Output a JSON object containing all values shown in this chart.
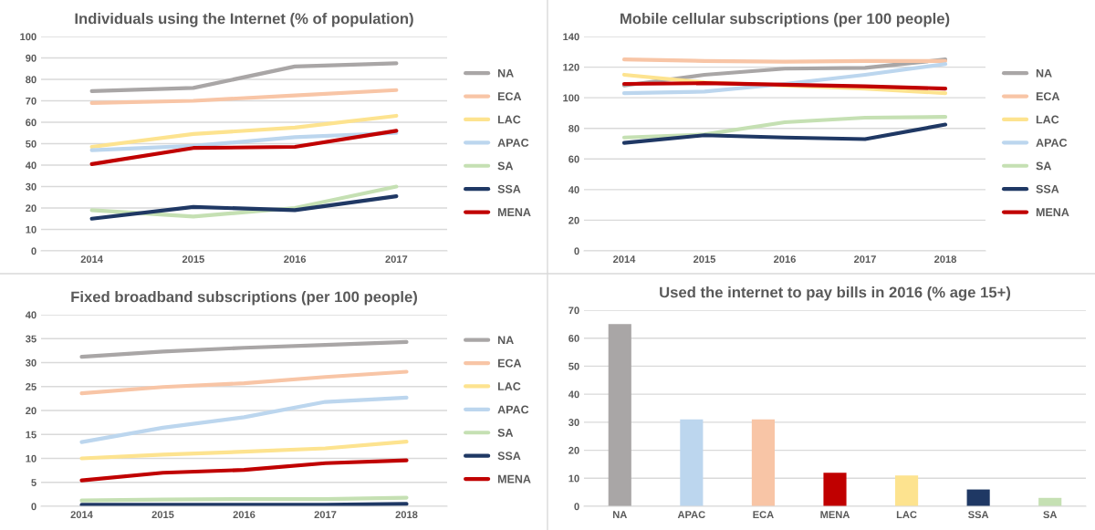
{
  "chart_data": [
    {
      "type": "line",
      "title": "Individuals using the Internet (% of population)",
      "categories": [
        "2014",
        "2015",
        "2016",
        "2017"
      ],
      "ylim": [
        0,
        100
      ],
      "yticks": [
        0,
        10,
        20,
        30,
        40,
        50,
        60,
        70,
        80,
        90,
        100
      ],
      "grid": "y",
      "legend": "right",
      "series": [
        {
          "name": "NA",
          "color": "#a9a6a6",
          "values": [
            74.5,
            76,
            86,
            87.5
          ]
        },
        {
          "name": "ECA",
          "color": "#f8c5a6",
          "values": [
            69,
            70,
            72.5,
            75
          ]
        },
        {
          "name": "LAC",
          "color": "#fde38f",
          "values": [
            48.5,
            54.5,
            57.5,
            63
          ]
        },
        {
          "name": "APAC",
          "color": "#bcd6ee",
          "values": [
            47,
            49,
            53,
            55
          ]
        },
        {
          "name": "SA",
          "color": "#c5e0b3",
          "values": [
            19,
            16,
            20,
            30
          ]
        },
        {
          "name": "SSA",
          "color": "#1f3864",
          "values": [
            15,
            20.5,
            19,
            25.5
          ]
        },
        {
          "name": "MENA",
          "color": "#c00000",
          "values": [
            40.5,
            48,
            48.5,
            56
          ]
        }
      ]
    },
    {
      "type": "line",
      "title": "Mobile cellular subscriptions (per 100 people)",
      "categories": [
        "2014",
        "2015",
        "2016",
        "2017",
        "2018"
      ],
      "ylim": [
        0,
        140
      ],
      "yticks": [
        0,
        20,
        40,
        60,
        80,
        100,
        120,
        140
      ],
      "grid": "y",
      "legend": "right",
      "series": [
        {
          "name": "NA",
          "color": "#a9a6a6",
          "values": [
            108,
            115,
            119,
            119.5,
            125
          ]
        },
        {
          "name": "ECA",
          "color": "#f8c5a6",
          "values": [
            125,
            124,
            123.5,
            124,
            124
          ]
        },
        {
          "name": "LAC",
          "color": "#fde38f",
          "values": [
            115,
            110,
            108,
            106,
            103
          ]
        },
        {
          "name": "APAC",
          "color": "#bcd6ee",
          "values": [
            103,
            104,
            109,
            115,
            122
          ]
        },
        {
          "name": "SA",
          "color": "#c5e0b3",
          "values": [
            74,
            76,
            84,
            87,
            87.5
          ]
        },
        {
          "name": "SSA",
          "color": "#1f3864",
          "values": [
            70.5,
            75.5,
            74,
            73,
            82.5
          ]
        },
        {
          "name": "MENA",
          "color": "#c00000",
          "values": [
            109,
            109.5,
            108.5,
            107.5,
            106
          ]
        }
      ]
    },
    {
      "type": "line",
      "title": "Fixed broadband subscriptions (per 100 people)",
      "categories": [
        "2014",
        "2015",
        "2016",
        "2017",
        "2018"
      ],
      "ylim": [
        0,
        40
      ],
      "yticks": [
        0,
        5,
        10,
        15,
        20,
        25,
        30,
        35,
        40
      ],
      "grid": "y",
      "legend": "right",
      "series": [
        {
          "name": "NA",
          "color": "#a9a6a6",
          "values": [
            31.2,
            32.3,
            33.1,
            33.7,
            34.3
          ]
        },
        {
          "name": "ECA",
          "color": "#f8c5a6",
          "values": [
            23.6,
            24.9,
            25.7,
            27,
            28.1
          ]
        },
        {
          "name": "LAC",
          "color": "#fde38f",
          "values": [
            10,
            10.8,
            11.4,
            12.1,
            13.5
          ]
        },
        {
          "name": "APAC",
          "color": "#bcd6ee",
          "values": [
            13.4,
            16.4,
            18.6,
            21.8,
            22.7
          ]
        },
        {
          "name": "SA",
          "color": "#c5e0b3",
          "values": [
            1.2,
            1.4,
            1.5,
            1.5,
            1.8
          ]
        },
        {
          "name": "SSA",
          "color": "#1f3864",
          "values": [
            0.3,
            0.3,
            0.3,
            0.3,
            0.5
          ]
        },
        {
          "name": "MENA",
          "color": "#c00000",
          "values": [
            5.4,
            7,
            7.6,
            9,
            9.6
          ]
        }
      ]
    },
    {
      "type": "bar",
      "title": "Used the internet to pay bills in 2016 (% age 15+)",
      "categories": [
        "NA",
        "APAC",
        "ECA",
        "MENA",
        "LAC",
        "SSA",
        "SA"
      ],
      "values": [
        65,
        31,
        31,
        12,
        11,
        6,
        3
      ],
      "colors": [
        "#a9a6a6",
        "#bcd6ee",
        "#f8c5a6",
        "#c00000",
        "#fde38f",
        "#1f3864",
        "#c5e0b3"
      ],
      "ylim": [
        0,
        70
      ],
      "yticks": [
        0,
        10,
        20,
        30,
        40,
        50,
        60,
        70
      ],
      "grid": "y"
    }
  ]
}
